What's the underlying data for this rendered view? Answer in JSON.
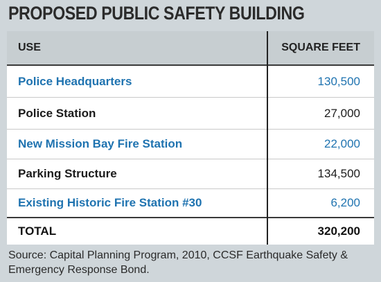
{
  "title": "PROPOSED PUBLIC SAFETY BUILDING",
  "table": {
    "headers": {
      "use": "USE",
      "square_feet": "SQUARE FEET"
    },
    "rows": [
      {
        "use": "Police Headquarters",
        "square_feet": "130,500"
      },
      {
        "use": "Police Station",
        "square_feet": "27,000"
      },
      {
        "use": "New Mission Bay Fire Station",
        "square_feet": "22,000"
      },
      {
        "use": "Parking Structure",
        "square_feet": "134,500"
      },
      {
        "use": "Existing Historic Fire Station #30",
        "square_feet": "6,200"
      }
    ],
    "total": {
      "use": "TOTAL",
      "square_feet": "320,200"
    }
  },
  "source": "Source: Capital Planning Program, 2010, CCSF Earthquake Safety & Emergency Response Bond.",
  "colors": {
    "background": "#cfd6da",
    "header": "#c7ced1",
    "accent_blue": "#1f73b0",
    "divider": "#222222"
  }
}
